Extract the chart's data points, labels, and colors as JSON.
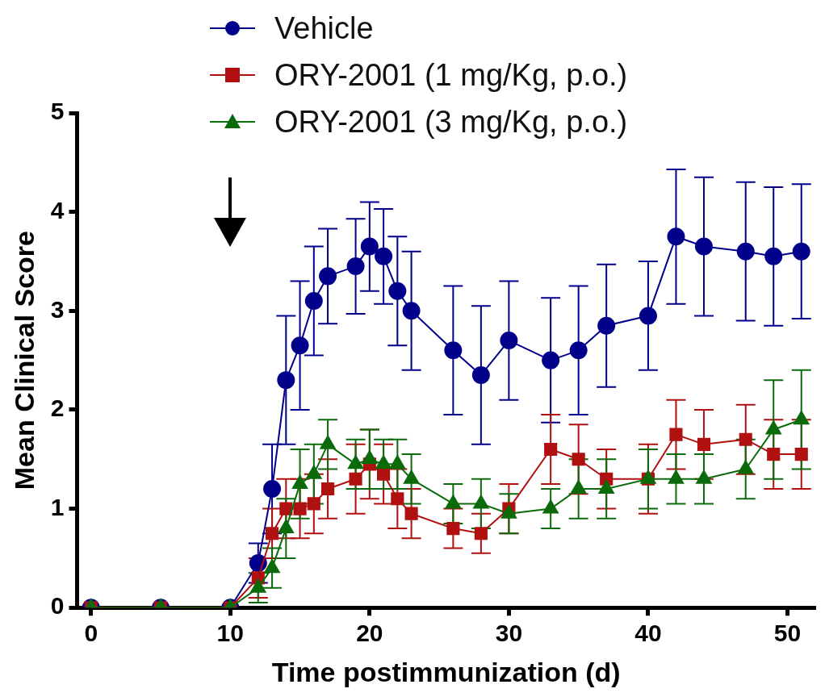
{
  "chart_data": {
    "type": "line",
    "xlabel": "Time postimmunization (d)",
    "ylabel": "Mean Clinical Score",
    "xlim": [
      -1,
      52
    ],
    "xticks": [
      0,
      10,
      20,
      30,
      40,
      50
    ],
    "ylim": [
      0,
      5
    ],
    "yticks": [
      0,
      1,
      2,
      3,
      4,
      5
    ],
    "grid": false,
    "legend": "top",
    "line_style": "solid",
    "series": [
      {
        "name": "Vehicle",
        "color": "#00008b",
        "marker": "circle",
        "x": [
          0,
          5,
          10,
          12,
          13,
          14,
          15,
          16,
          17,
          19,
          20,
          21,
          22,
          23,
          26,
          28,
          30,
          33,
          35,
          37,
          40,
          42,
          44,
          47,
          49,
          51
        ],
        "values": [
          0,
          0,
          0,
          0.45,
          1.2,
          2.3,
          2.65,
          3.1,
          3.35,
          3.45,
          3.65,
          3.55,
          3.2,
          3.0,
          2.6,
          2.35,
          2.7,
          2.5,
          2.6,
          2.85,
          2.95,
          3.75,
          3.65,
          3.6,
          3.55,
          3.6
        ],
        "errors": [
          null,
          null,
          null,
          0.2,
          0.45,
          0.65,
          0.65,
          0.55,
          0.48,
          0.48,
          0.45,
          0.48,
          0.55,
          0.6,
          0.65,
          0.7,
          0.6,
          0.63,
          0.65,
          0.62,
          0.55,
          0.68,
          0.7,
          0.7,
          0.7,
          0.68
        ]
      },
      {
        "name": "ORY-2001 (1 mg/Kg, p.o.)",
        "color": "#b01010",
        "marker": "square",
        "x": [
          0,
          5,
          10,
          12,
          13,
          14,
          15,
          16,
          17,
          19,
          20,
          21,
          22,
          23,
          26,
          28,
          30,
          33,
          35,
          37,
          40,
          42,
          44,
          47,
          49,
          51
        ],
        "values": [
          0,
          0,
          0,
          0.3,
          0.75,
          1.0,
          1.0,
          1.05,
          1.2,
          1.3,
          1.45,
          1.35,
          1.1,
          0.95,
          0.8,
          0.75,
          1.0,
          1.6,
          1.5,
          1.3,
          1.3,
          1.75,
          1.65,
          1.7,
          1.55,
          1.55
        ],
        "errors": [
          null,
          null,
          null,
          0.2,
          0.25,
          0.3,
          0.3,
          0.3,
          0.3,
          0.35,
          0.35,
          0.3,
          0.3,
          0.25,
          0.2,
          0.2,
          0.25,
          0.35,
          0.35,
          0.3,
          0.35,
          0.35,
          0.35,
          0.35,
          0.35,
          0.35
        ]
      },
      {
        "name": "ORY-2001 (3 mg/Kg, p.o.)",
        "color": "#0b6b0b",
        "marker": "triangle",
        "x": [
          0,
          5,
          10,
          12,
          13,
          14,
          15,
          16,
          17,
          19,
          20,
          21,
          22,
          23,
          26,
          28,
          30,
          33,
          35,
          37,
          40,
          42,
          44,
          47,
          49,
          51
        ],
        "values": [
          0,
          0,
          0,
          0.2,
          0.4,
          0.8,
          1.25,
          1.35,
          1.65,
          1.45,
          1.5,
          1.45,
          1.45,
          1.3,
          1.05,
          1.05,
          0.95,
          1.0,
          1.2,
          1.2,
          1.3,
          1.3,
          1.3,
          1.4,
          1.8,
          1.9
        ],
        "errors": [
          null,
          null,
          null,
          0.15,
          0.2,
          0.3,
          0.35,
          0.3,
          0.25,
          0.25,
          0.3,
          0.25,
          0.25,
          0.25,
          0.2,
          0.25,
          0.2,
          0.2,
          0.3,
          0.3,
          0.3,
          0.25,
          0.25,
          0.3,
          0.5,
          0.5
        ]
      }
    ]
  }
}
